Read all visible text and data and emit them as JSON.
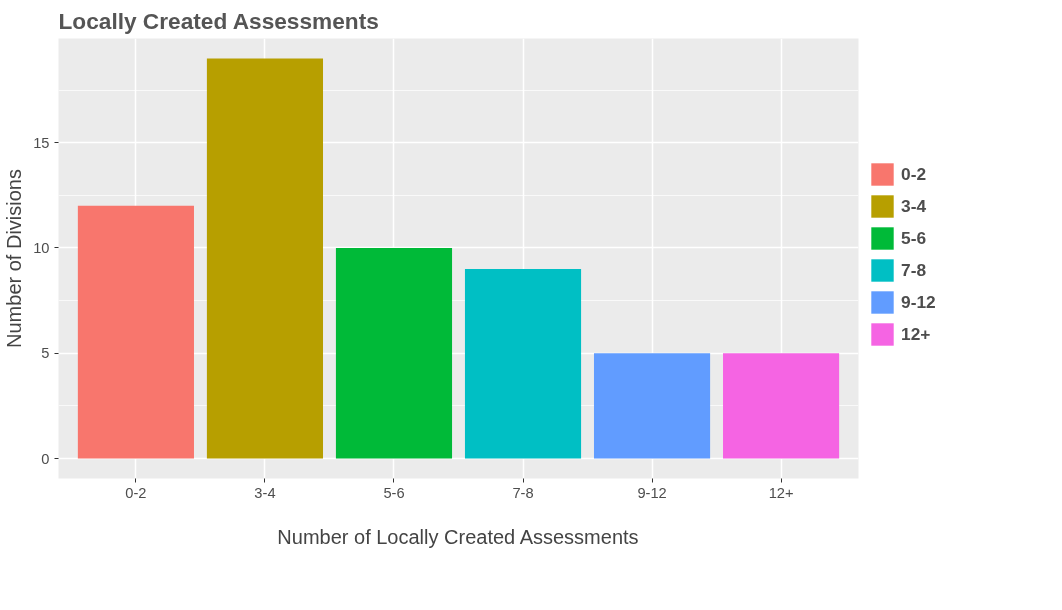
{
  "chart_data": {
    "type": "bar",
    "title": "Locally Created Assessments",
    "xlabel": "Number of Locally Created Assessments",
    "ylabel": "Number of Divisions",
    "categories": [
      "0-2",
      "3-4",
      "5-6",
      "7-8",
      "9-12",
      "12+"
    ],
    "stacked": true,
    "series": [
      {
        "name": "0-2",
        "color": "#f8766d",
        "values": [
          12,
          null,
          null,
          null,
          null,
          null
        ]
      },
      {
        "name": "3-4",
        "color": "#b79f00",
        "values": [
          null,
          19,
          null,
          null,
          null,
          null
        ]
      },
      {
        "name": "5-6",
        "color": "#00ba38",
        "values": [
          null,
          null,
          10,
          null,
          null,
          null
        ]
      },
      {
        "name": "7-8",
        "color": "#00bfc4",
        "values": [
          null,
          null,
          null,
          9,
          null,
          null
        ]
      },
      {
        "name": "9-12",
        "color": "#619cff",
        "values": [
          null,
          null,
          null,
          null,
          5,
          null
        ]
      },
      {
        "name": "12+",
        "color": "#f564e3",
        "values": [
          null,
          null,
          null,
          null,
          null,
          5
        ]
      }
    ],
    "ylim": [
      -0.95,
      19.95
    ],
    "yticks": [
      0,
      5,
      10,
      15
    ],
    "grid": true,
    "legend": "right"
  }
}
